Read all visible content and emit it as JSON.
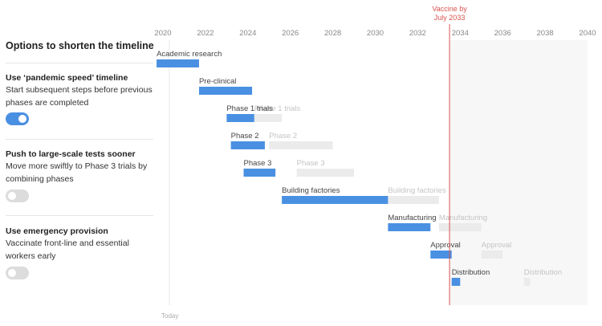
{
  "panel": {
    "title": "Options to shorten the timeline",
    "options": [
      {
        "title": "Use ‘pandemic speed’ timeline",
        "desc": "Start subsequent steps before previous phases are completed",
        "on": true
      },
      {
        "title": "Push to large-scale tests sooner",
        "desc": "Move more swiftly to Phase 3 trials by combining phases",
        "on": false
      },
      {
        "title": "Use emergency provision",
        "desc": "Vaccinate front-line and essential workers early",
        "on": false
      }
    ]
  },
  "colors": {
    "active": "#4a90e2",
    "inactive": "#ebebeb",
    "marker": "#d9534f",
    "future_bg": "#f7f7f7"
  },
  "chart_data": {
    "type": "gantt",
    "x_ticks": [
      "2020",
      "2022",
      "2024",
      "2026",
      "2028",
      "2030",
      "2032",
      "2034",
      "2036",
      "2038",
      "2040"
    ],
    "xlim": [
      2020,
      2040
    ],
    "today_label": "Today",
    "marker": {
      "label_line1": "Vaccine by",
      "label_line2": "July 2033",
      "year": 2033.5
    },
    "tasks": [
      {
        "label": "Academic research",
        "active": [
          2019.7,
          2021.7
        ],
        "normal": null
      },
      {
        "label": "Pre-clinical",
        "active": [
          2021.7,
          2024.2
        ],
        "normal": null
      },
      {
        "label": "Phase 1 trials",
        "active": [
          2023.0,
          2024.3
        ],
        "normal": [
          2024.3,
          2025.6
        ]
      },
      {
        "label": "Phase 2",
        "active": [
          2023.2,
          2024.8
        ],
        "normal": [
          2025.0,
          2028.0
        ]
      },
      {
        "label": "Phase 3",
        "active": [
          2023.8,
          2025.3
        ],
        "normal": [
          2026.3,
          2029.0
        ]
      },
      {
        "label": "Building factories",
        "active": [
          2025.6,
          2030.6
        ],
        "normal": [
          2030.6,
          2033.0
        ]
      },
      {
        "label": "Manufacturing",
        "active": [
          2030.6,
          2032.6
        ],
        "normal": [
          2033.0,
          2035.0
        ]
      },
      {
        "label": "Approval",
        "active": [
          2032.6,
          2033.6
        ],
        "normal": [
          2035.0,
          2036.0
        ]
      },
      {
        "label": "Distribution",
        "active": [
          2033.6,
          2034.0
        ],
        "normal": [
          2037.0,
          2037.3
        ]
      }
    ]
  }
}
